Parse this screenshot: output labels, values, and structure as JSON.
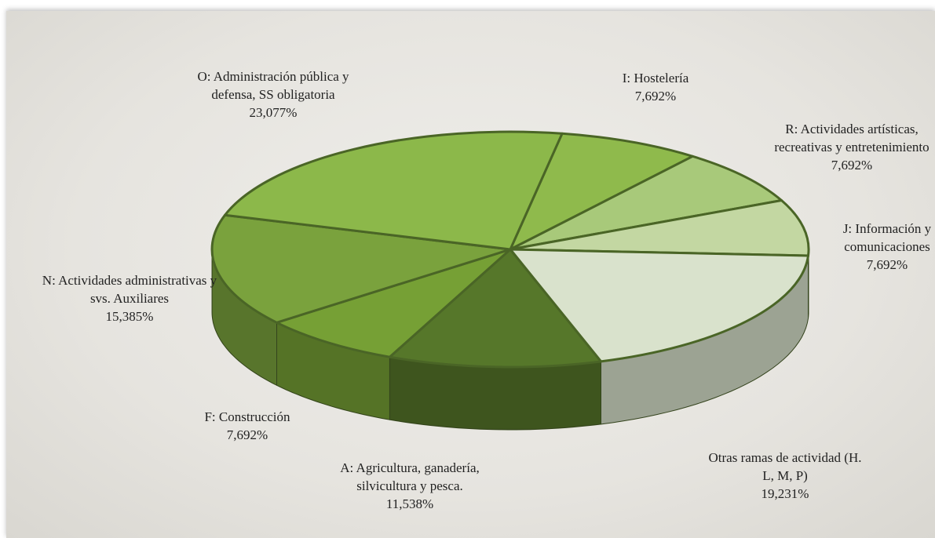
{
  "chart_data": {
    "type": "pie",
    "categories": [
      "I: Hostelería",
      "R: Actividades artísticas, recreativas y entretenimiento",
      "J: Información y comunicaciones",
      "Otras ramas de actividad (H. L, M, P)",
      "A: Agricultura, ganadería, silvicultura y pesca.",
      "F: Construcción",
      "N: Actividades administrativas y svs. Auxiliares",
      "O: Administración pública y defensa, SS obligatoria"
    ],
    "values": [
      7.692,
      7.692,
      7.692,
      19.231,
      11.538,
      7.692,
      15.385,
      23.077
    ],
    "value_labels": [
      "7,692%",
      "7,692%",
      "7,692%",
      "19,231%",
      "11,538%",
      "7,692%",
      "15,385%",
      "23,077%"
    ],
    "colors": [
      "#8fba4c",
      "#a8c97a",
      "#c3d7a2",
      "#d9e2cc",
      "#56772a",
      "#76a035",
      "#7aa23d",
      "#8cb84a"
    ]
  }
}
